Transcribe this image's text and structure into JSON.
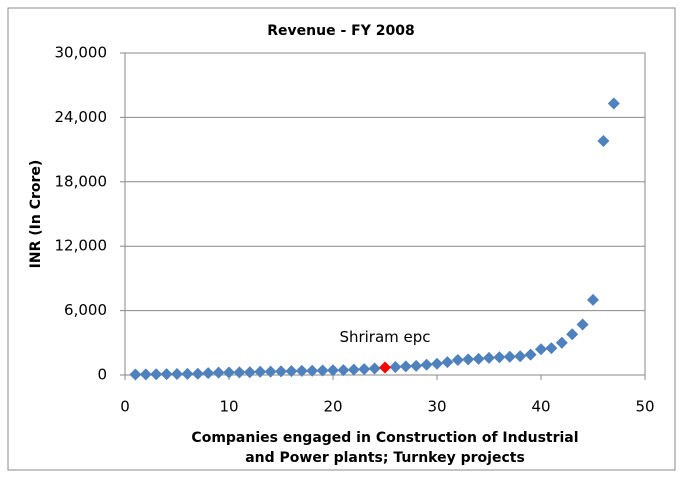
{
  "chart_data": {
    "type": "scatter",
    "title": "Revenue - FY 2008",
    "x_label": "Companies engaged in Construction of Industrial and Power plants; Turnkey projects",
    "y_label": "INR (In Crore)",
    "xlim": [
      0,
      50
    ],
    "xticks": [
      0,
      10,
      20,
      30,
      40,
      50
    ],
    "ylim": [
      0,
      30000
    ],
    "yticks": [
      0,
      {
        "value": 6000,
        "label": "6,000"
      },
      {
        "value": 12000,
        "label": "12,000"
      },
      {
        "value": 18000,
        "label": "18,000"
      },
      {
        "value": 24000,
        "label": "24,000"
      },
      {
        "value": 30000,
        "label": "30,000"
      }
    ],
    "grid": true,
    "series": [
      {
        "color": "#4f81bd",
        "x": [
          1,
          2,
          3,
          4,
          5,
          6,
          7,
          8,
          9,
          10,
          11,
          12,
          13,
          14,
          15,
          16,
          17,
          18,
          19,
          20,
          21,
          22,
          23,
          24,
          26,
          27,
          28,
          29,
          30,
          31,
          32,
          33,
          34,
          35,
          36,
          37,
          38,
          39,
          40,
          41,
          42,
          43,
          44,
          45,
          46,
          47
        ],
        "values": [
          50,
          60,
          70,
          80,
          90,
          100,
          120,
          180,
          220,
          230,
          240,
          260,
          300,
          320,
          340,
          360,
          380,
          400,
          420,
          440,
          460,
          500,
          550,
          600,
          750,
          800,
          850,
          950,
          1050,
          1200,
          1400,
          1450,
          1500,
          1600,
          1650,
          1700,
          1750,
          1900,
          2400,
          2500,
          3000,
          3800,
          4700,
          7000,
          21800,
          25300
        ]
      },
      {
        "name": "Shriram epc",
        "color": "#ff0000",
        "x": [
          25
        ],
        "values": [
          700
        ]
      }
    ]
  }
}
